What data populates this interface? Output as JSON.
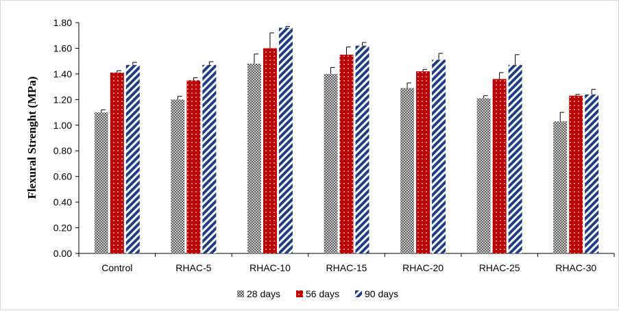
{
  "chart_data": {
    "type": "bar",
    "title": "",
    "xlabel": "",
    "ylabel": "Flexural Strenght (MPa)",
    "ylim": [
      0,
      1.8
    ],
    "ytick_step": 0.2,
    "ytick_labels": [
      "0.00",
      "0.20",
      "0.40",
      "0.60",
      "0.80",
      "1.00",
      "1.20",
      "1.40",
      "1.60",
      "1.80"
    ],
    "grid": false,
    "legend_position": "bottom",
    "categories": [
      "Control",
      "RHAC-5",
      "RHAC-10",
      "RHAC-15",
      "RHAC-20",
      "RHAC-25",
      "RHAC-30"
    ],
    "series": [
      {
        "name": "28 days",
        "pattern": "checker",
        "color": "#6e6e6e",
        "values": [
          1.1,
          1.2,
          1.48,
          1.4,
          1.29,
          1.21,
          1.03
        ],
        "errors": [
          0.02,
          0.025,
          0.075,
          0.05,
          0.04,
          0.02,
          0.07
        ]
      },
      {
        "name": "56 days",
        "pattern": "dots",
        "color": "#c00000",
        "values": [
          1.41,
          1.35,
          1.6,
          1.55,
          1.42,
          1.36,
          1.23
        ],
        "errors": [
          0.015,
          0.02,
          0.12,
          0.06,
          0.015,
          0.05,
          0.01
        ]
      },
      {
        "name": "90 days",
        "pattern": "diagonal",
        "color": "#1f3c88",
        "values": [
          1.47,
          1.47,
          1.76,
          1.62,
          1.51,
          1.47,
          1.24
        ],
        "errors": [
          0.02,
          0.025,
          0.01,
          0.025,
          0.05,
          0.08,
          0.04
        ]
      }
    ]
  }
}
